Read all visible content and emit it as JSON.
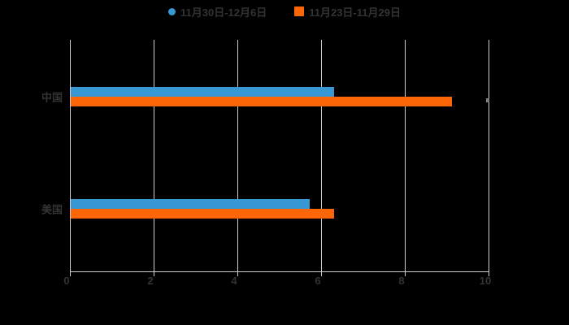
{
  "background_color": "#000000",
  "legend": {
    "items": [
      {
        "label": "11月30日-12月6日",
        "marker": "circle",
        "color": "#3798d3"
      },
      {
        "label": "11月23日-11月29日",
        "marker": "square",
        "color": "#fc6606"
      }
    ]
  },
  "chart_data": {
    "type": "bar",
    "orientation": "horizontal",
    "title": "",
    "xlabel": "",
    "ylabel": "",
    "categories": [
      "中国",
      "美国"
    ],
    "series": [
      {
        "name": "11月30日-12月6日",
        "color": "#3798d3",
        "marker": "circle",
        "values": [
          6.3,
          5.7
        ]
      },
      {
        "name": "11月23日-11月29日",
        "color": "#fc6606",
        "marker": "square",
        "values": [
          9.1,
          6.3
        ]
      }
    ],
    "xlim": [
      0,
      10
    ],
    "x_ticks": [
      0,
      2,
      4,
      6,
      8,
      10
    ],
    "grid": true,
    "legend_position": "top-center",
    "axis_color": "#cccccc",
    "label_color": "#333333"
  }
}
